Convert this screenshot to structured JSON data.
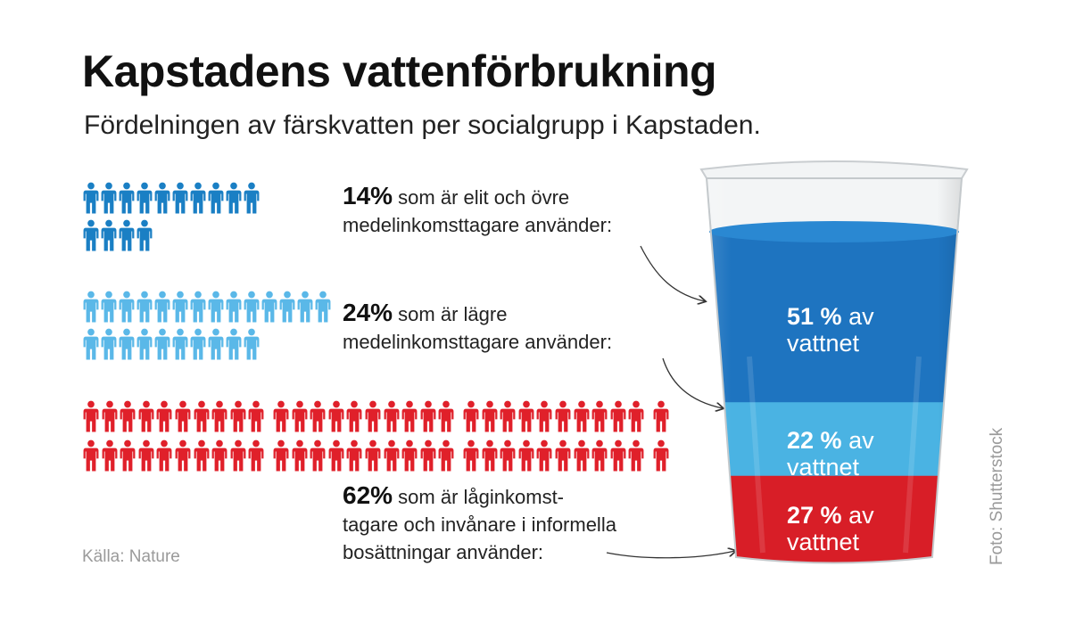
{
  "title": "Kapstadens vattenförbrukning",
  "subtitle": "Fördelningen av färskvatten per socialgrupp i Kapstaden.",
  "colors": {
    "elite": "#1a7fc4",
    "middle": "#5ab8e8",
    "low": "#e0202a",
    "glass_blue": "#1e74c0",
    "glass_light": "#4ab3e3",
    "glass_red": "#d81e27"
  },
  "icons": {
    "person": "person-icon",
    "arrow": "arrow-icon",
    "glass": "water-glass-icon"
  },
  "chart_data": {
    "type": "table",
    "title": "Kapstadens vattenförbrukning",
    "subtitle": "Fördelningen av färskvatten per socialgrupp i Kapstaden.",
    "series": [
      {
        "population_share_label": "14%",
        "population_share": 14,
        "description": "som är elit och övre medelinkomsttagare använder:",
        "water_share": 51,
        "water_label_num": "51 %",
        "water_label_rest": "av",
        "water_label_line2": "vattnet",
        "icon_count": 14
      },
      {
        "population_share_label": "24%",
        "population_share": 24,
        "description": "som är lägre medelinkomsttagare använder:",
        "water_share": 22,
        "water_label_num": "22 %",
        "water_label_rest": "av",
        "water_label_line2": "vattnet",
        "icon_count": 24
      },
      {
        "population_share_label": "62%",
        "population_share": 62,
        "description": "som är låginkomst- tagare och invånare i informella bosättningar använder:",
        "water_share": 27,
        "water_label_num": "27 %",
        "water_label_rest": "av",
        "water_label_line2": "vattnet",
        "icon_count": 62
      }
    ]
  },
  "groups": [
    {
      "pct": "14%",
      "line1": "som är elit och övre",
      "line2": "medelinkomsttagare använder:"
    },
    {
      "pct": "24%",
      "line1": "som är lägre",
      "line2": "medelinkomsttagare använder:"
    },
    {
      "pct": "62%",
      "line1": "som är låginkomst-",
      "line2": "tagare och invånare i informella",
      "line3": "bosättningar använder:"
    }
  ],
  "source": "Källa: Nature",
  "photo_credit": "Foto: Shutterstock"
}
